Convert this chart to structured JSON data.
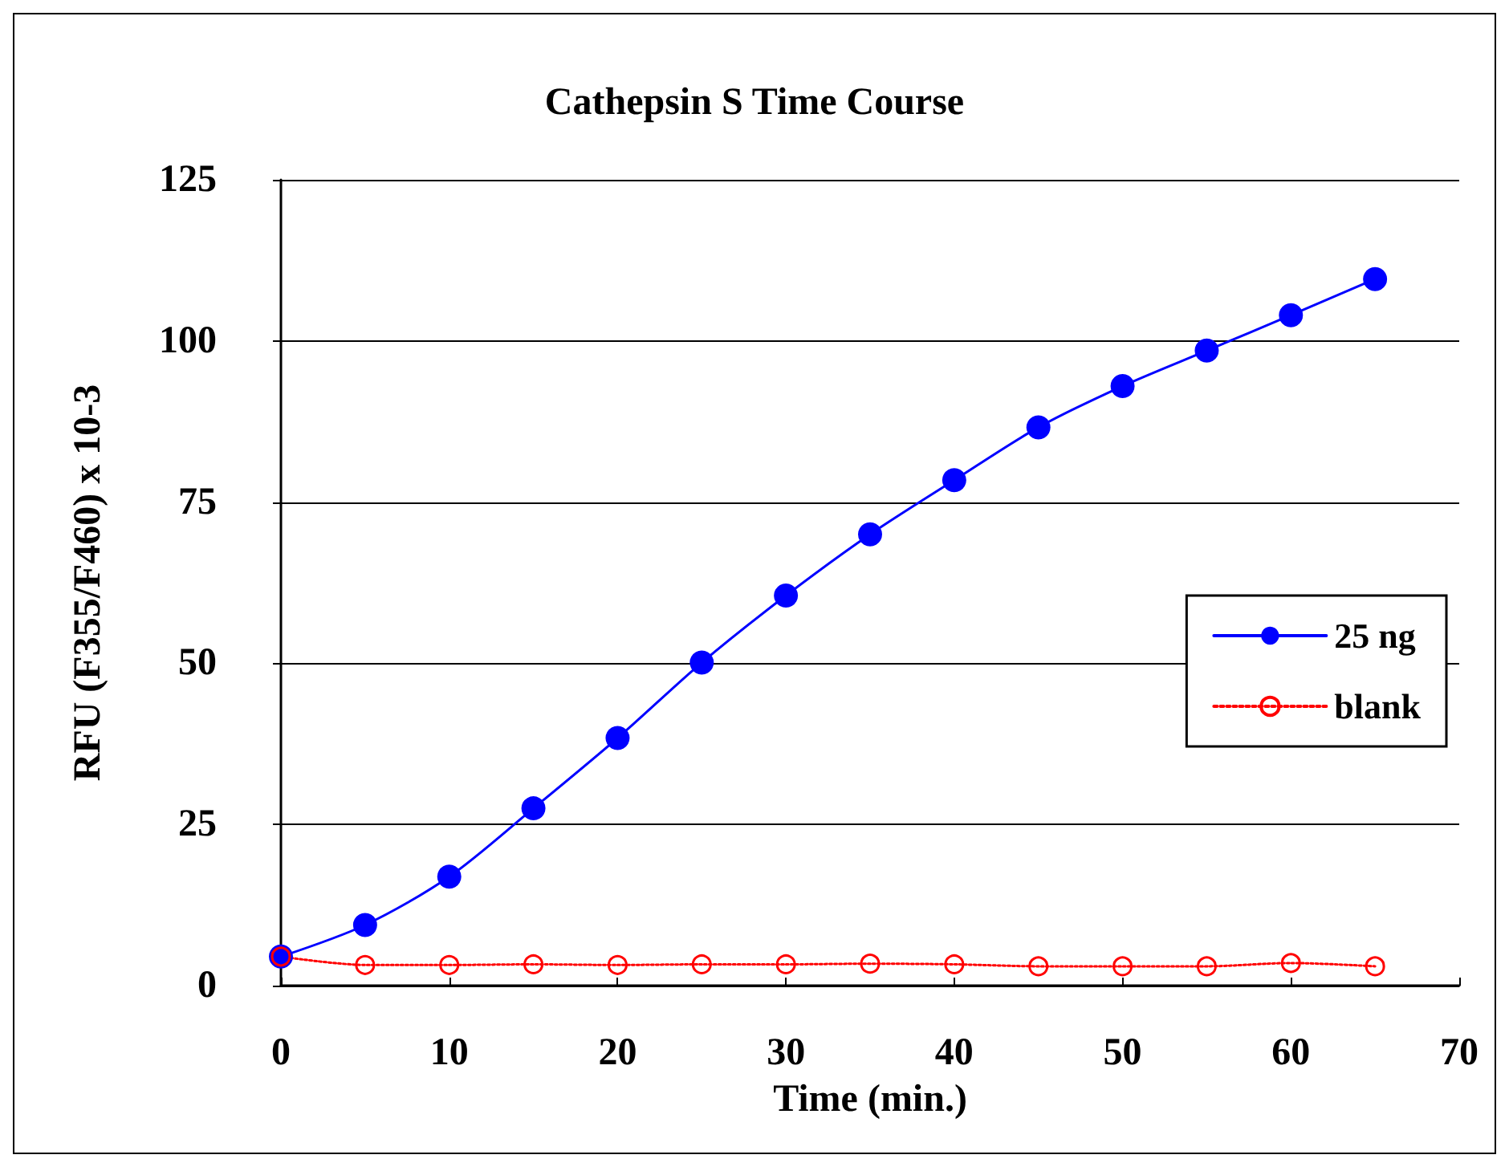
{
  "chart_data": {
    "type": "line",
    "title": "Cathepsin S Time Course",
    "xlabel": "Time (min.)",
    "ylabel": "RFU (F355/F460) x 10-3",
    "x": [
      0,
      5,
      10,
      15,
      20,
      25,
      30,
      35,
      40,
      45,
      50,
      55,
      60,
      65
    ],
    "series": [
      {
        "name": "25 ng",
        "color": "#0000ff",
        "marker": "circle",
        "line_style": "solid",
        "values": [
          4.5,
          9.4,
          16.9,
          27.5,
          38.4,
          50.1,
          60.5,
          70,
          78.4,
          86.6,
          93,
          98.5,
          104,
          109.6
        ]
      },
      {
        "name": "blank",
        "color": "#ff0000",
        "marker": "circle",
        "line_style": "dotted",
        "values": [
          4.5,
          3.2,
          3.2,
          3.3,
          3.2,
          3.3,
          3.3,
          3.4,
          3.3,
          3,
          3,
          3,
          3.5,
          3
        ]
      }
    ],
    "xlim": [
      0,
      70
    ],
    "xticks": [
      0,
      10,
      20,
      30,
      40,
      50,
      60,
      70
    ],
    "ylim": [
      0,
      125
    ],
    "yticks": [
      0,
      25,
      50,
      75,
      100,
      125
    ],
    "grid": "y",
    "legend": "right"
  }
}
